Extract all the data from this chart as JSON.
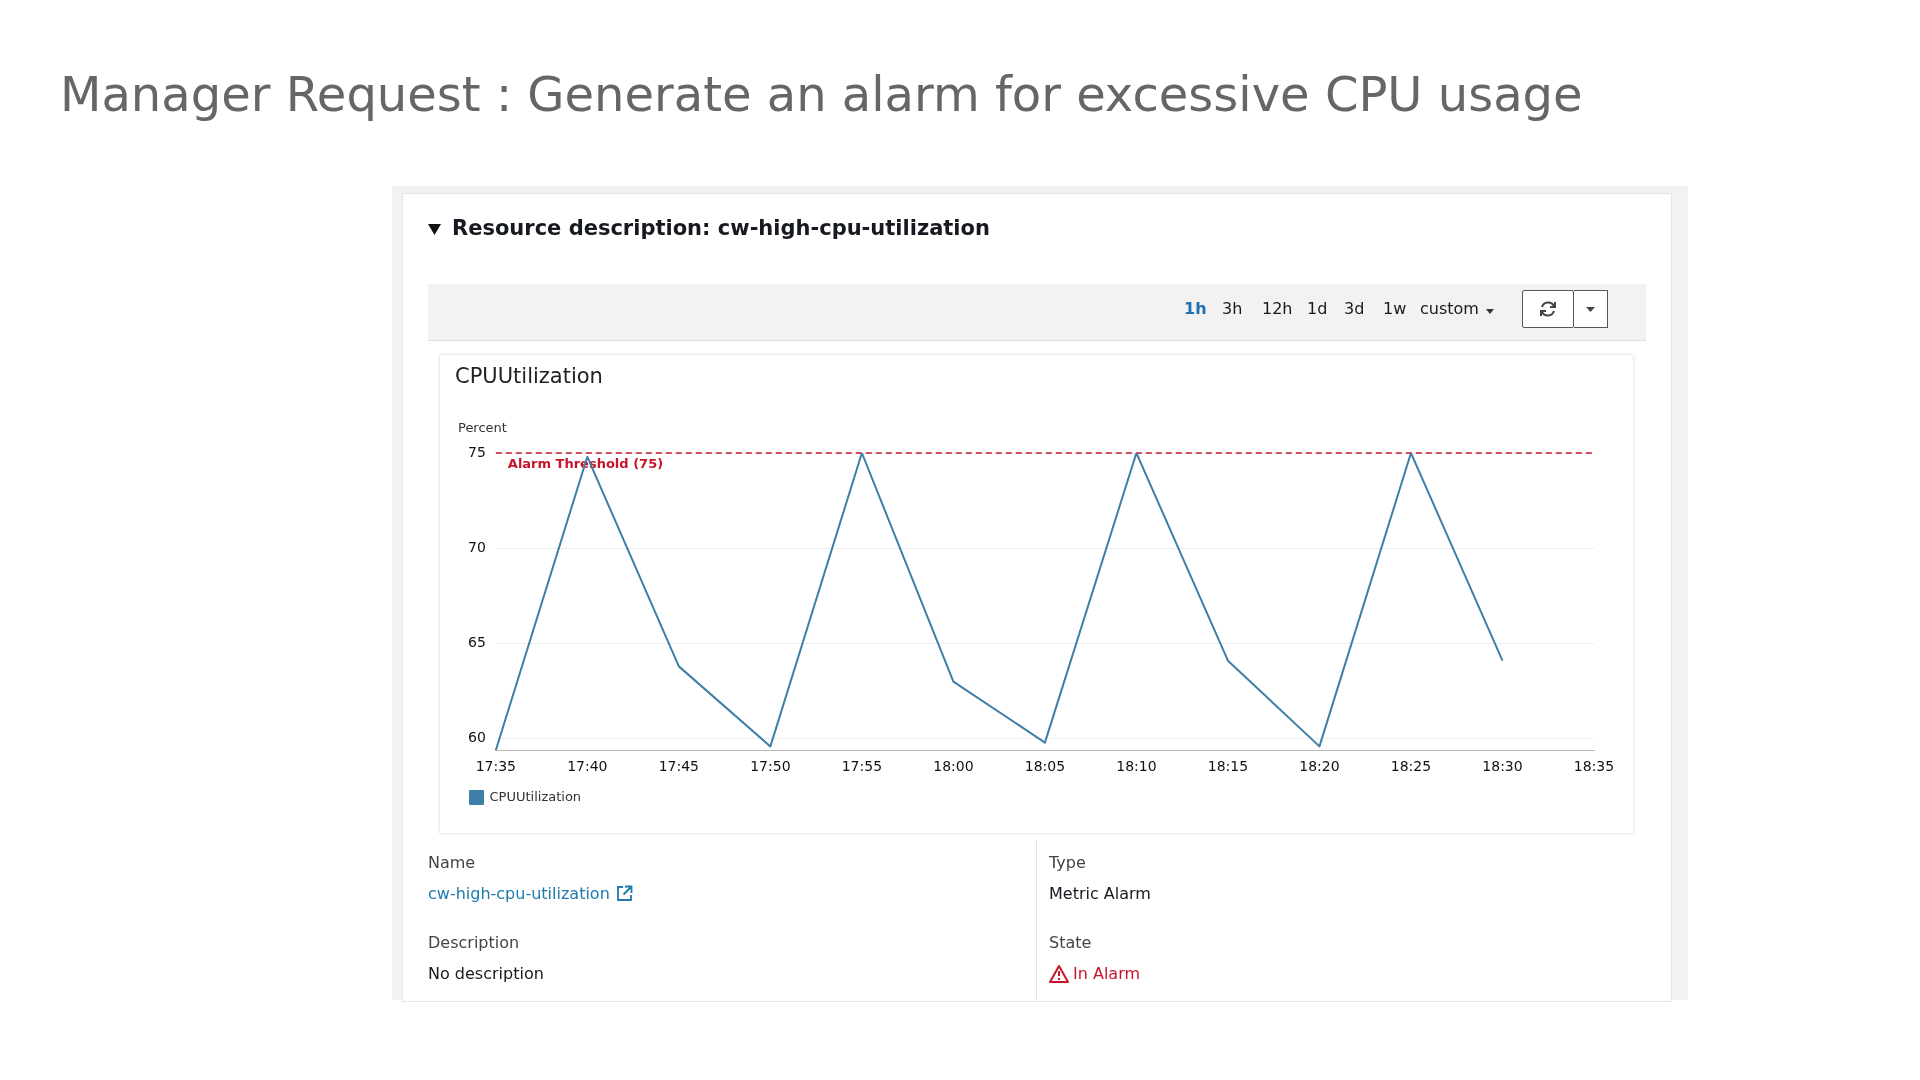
{
  "chart_data": {
    "type": "line",
    "title": "Manager Request : Generate an alarm for excessive CPU usage",
    "subtitle": "CPUUtilization",
    "ylabel": "Percent",
    "categories": [
      "17:35",
      "17:40",
      "17:45",
      "17:50",
      "17:55",
      "18:00",
      "18:05",
      "18:10",
      "18:15",
      "18:20",
      "18:25",
      "18:30",
      "18:35"
    ],
    "series": [
      {
        "name": "CPUUtilization",
        "color": "#3d7fa6",
        "values": [
          59.4,
          74.8,
          63.8,
          59.6,
          75,
          63.0,
          59.8,
          75,
          64.1,
          59.6,
          75,
          64.1,
          null
        ]
      }
    ],
    "ylim": [
      59.4,
      75
    ],
    "yticks": [
      60,
      65,
      70,
      75
    ],
    "grid": "y",
    "legend": "bottom",
    "marker": "none",
    "line_style": "solid",
    "ref_lines": [
      {
        "axis": "y",
        "value": 75,
        "label": "Alarm Threshold (75)",
        "color": "#c7162b",
        "line_style": "dashed"
      }
    ],
    "annotations": [
      "Resource description: cw-high-cpu-utilization",
      "1h",
      "3h",
      "12h",
      "1d",
      "3d",
      "1w",
      "custom",
      "Name",
      "cw-high-cpu-utilization",
      "Type",
      "Metric Alarm",
      "Description",
      "No description",
      "State",
      "In Alarm"
    ]
  }
}
